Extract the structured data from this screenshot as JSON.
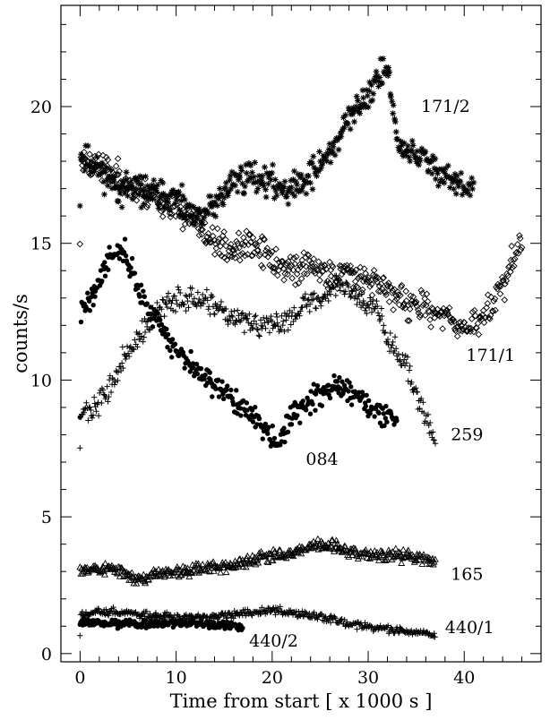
{
  "chart_data": {
    "type": "scatter",
    "xlabel": "Time from start [ x 1000 s ]",
    "ylabel": "counts/s",
    "xlim": [
      -2,
      48
    ],
    "ylim": [
      -0.3,
      23.7
    ],
    "xticks": [
      0,
      10,
      20,
      30,
      40
    ],
    "yticks": [
      0,
      5,
      10,
      15,
      20
    ],
    "grid": false,
    "legend": "none",
    "series": [
      {
        "name": "171/2",
        "marker": "asterisk",
        "seed": 11,
        "jitter": 0.45,
        "anchors": [
          [
            0,
            18.2
          ],
          [
            2,
            17.7
          ],
          [
            4,
            17.0
          ],
          [
            6,
            17.0
          ],
          [
            8,
            16.8
          ],
          [
            10,
            16.6
          ],
          [
            12,
            15.8
          ],
          [
            14,
            16.4
          ],
          [
            16,
            17.3
          ],
          [
            18,
            17.5
          ],
          [
            20,
            17.2
          ],
          [
            22,
            17.0
          ],
          [
            24,
            17.5
          ],
          [
            26,
            18.3
          ],
          [
            28,
            19.5
          ],
          [
            30,
            20.5
          ],
          [
            32,
            21.5
          ],
          [
            33,
            18.6
          ],
          [
            35,
            18.2
          ],
          [
            37,
            17.8
          ],
          [
            39,
            17.2
          ],
          [
            41,
            16.8
          ]
        ]
      },
      {
        "name": "171/1",
        "marker": "diamond",
        "seed": 23,
        "jitter": 0.45,
        "anchors": [
          [
            0,
            18.0
          ],
          [
            2,
            17.8
          ],
          [
            4,
            17.5
          ],
          [
            6,
            16.9
          ],
          [
            8,
            16.7
          ],
          [
            10,
            16.3
          ],
          [
            12,
            15.8
          ],
          [
            14,
            15.0
          ],
          [
            16,
            14.8
          ],
          [
            18,
            14.9
          ],
          [
            20,
            14.4
          ],
          [
            22,
            14.0
          ],
          [
            24,
            14.2
          ],
          [
            26,
            13.8
          ],
          [
            28,
            14.0
          ],
          [
            30,
            13.8
          ],
          [
            32,
            13.3
          ],
          [
            34,
            12.8
          ],
          [
            36,
            12.6
          ],
          [
            38,
            12.3
          ],
          [
            40,
            12.0
          ],
          [
            42,
            12.2
          ],
          [
            44,
            13.5
          ],
          [
            46,
            15.0
          ]
        ]
      },
      {
        "name": "259",
        "marker": "plus",
        "seed": 37,
        "jitter": 0.35,
        "anchors": [
          [
            0,
            8.8
          ],
          [
            1.5,
            8.9
          ],
          [
            3,
            9.7
          ],
          [
            5,
            11.0
          ],
          [
            7,
            12.0
          ],
          [
            9,
            12.8
          ],
          [
            11,
            13.0
          ],
          [
            13,
            12.8
          ],
          [
            15,
            12.4
          ],
          [
            17,
            12.2
          ],
          [
            19,
            11.9
          ],
          [
            21,
            12.1
          ],
          [
            23,
            12.7
          ],
          [
            25,
            13.0
          ],
          [
            27,
            13.6
          ],
          [
            29,
            13.0
          ],
          [
            31,
            12.8
          ],
          [
            32,
            11.5
          ],
          [
            34,
            10.5
          ],
          [
            35.5,
            9.0
          ],
          [
            37,
            7.8
          ]
        ]
      },
      {
        "name": "084",
        "marker": "dot",
        "seed": 41,
        "jitter": 0.35,
        "anchors": [
          [
            0,
            12.5
          ],
          [
            1.5,
            13.2
          ],
          [
            3,
            14.5
          ],
          [
            4.5,
            14.8
          ],
          [
            5.5,
            13.8
          ],
          [
            7,
            12.6
          ],
          [
            8.5,
            12.0
          ],
          [
            10,
            11.0
          ],
          [
            12,
            10.4
          ],
          [
            14,
            9.8
          ],
          [
            16,
            9.3
          ],
          [
            18,
            8.6
          ],
          [
            20,
            8.0
          ],
          [
            21,
            7.7
          ],
          [
            22,
            8.7
          ],
          [
            24,
            9.2
          ],
          [
            26,
            9.8
          ],
          [
            28,
            9.6
          ],
          [
            30,
            9.0
          ],
          [
            32,
            8.6
          ],
          [
            33,
            8.4
          ]
        ]
      },
      {
        "name": "165",
        "marker": "triangle",
        "seed": 53,
        "jitter": 0.18,
        "anchors": [
          [
            0,
            3.1
          ],
          [
            3,
            3.1
          ],
          [
            5,
            2.9
          ],
          [
            6,
            2.7
          ],
          [
            8,
            2.9
          ],
          [
            10,
            3.0
          ],
          [
            12,
            3.1
          ],
          [
            14,
            3.2
          ],
          [
            16,
            3.2
          ],
          [
            18,
            3.4
          ],
          [
            20,
            3.6
          ],
          [
            22,
            3.7
          ],
          [
            24,
            3.9
          ],
          [
            26,
            4.0
          ],
          [
            28,
            3.7
          ],
          [
            30,
            3.6
          ],
          [
            32,
            3.6
          ],
          [
            34,
            3.6
          ],
          [
            36,
            3.4
          ],
          [
            37,
            3.3
          ]
        ]
      },
      {
        "name": "440/1",
        "marker": "plus",
        "seed": 67,
        "jitter": 0.12,
        "anchors": [
          [
            0,
            1.5
          ],
          [
            4,
            1.5
          ],
          [
            8,
            1.4
          ],
          [
            12,
            1.3
          ],
          [
            16,
            1.4
          ],
          [
            19,
            1.6
          ],
          [
            20,
            1.6
          ],
          [
            22,
            1.5
          ],
          [
            24,
            1.4
          ],
          [
            26,
            1.3
          ],
          [
            28,
            1.1
          ],
          [
            30,
            1.0
          ],
          [
            32,
            0.9
          ],
          [
            34,
            0.8
          ],
          [
            37,
            0.7
          ]
        ]
      },
      {
        "name": "440/2",
        "marker": "dot",
        "seed": 79,
        "jitter": 0.12,
        "anchors": [
          [
            0,
            1.2
          ],
          [
            3,
            1.1
          ],
          [
            6,
            1.1
          ],
          [
            9,
            1.1
          ],
          [
            12,
            1.1
          ],
          [
            15,
            1.0
          ],
          [
            17,
            1.0
          ]
        ]
      }
    ],
    "labels": [
      {
        "text": "171/2",
        "x": 35.5,
        "y": 19.8
      },
      {
        "text": "171/1",
        "x": 40.2,
        "y": 10.7
      },
      {
        "text": "259",
        "x": 38.6,
        "y": 7.8
      },
      {
        "text": "084",
        "x": 23.5,
        "y": 6.9
      },
      {
        "text": "165",
        "x": 38.6,
        "y": 2.7
      },
      {
        "text": "440/1",
        "x": 38.0,
        "y": 0.75
      },
      {
        "text": "440/2",
        "x": 17.6,
        "y": 0.25
      }
    ]
  }
}
